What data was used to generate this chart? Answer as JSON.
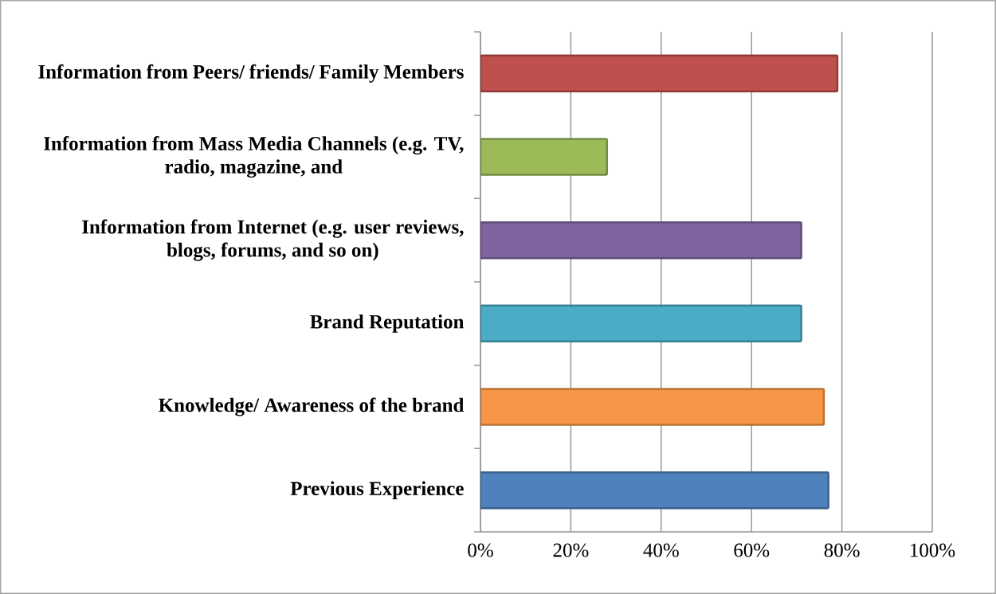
{
  "chart_data": {
    "type": "bar",
    "orientation": "horizontal",
    "categories": [
      "Information from Peers/ friends/ Family Members",
      "Information from Mass Media Channels (e.g. TV, radio, magazine, and",
      "Information from Internet (e.g. user reviews, blogs, forums, and so on)",
      "Brand Reputation",
      "Knowledge/ Awareness of the brand",
      "Previous Experience"
    ],
    "values": [
      79,
      28,
      71,
      71,
      76,
      77
    ],
    "colors": [
      "#c0504d",
      "#9bbb59",
      "#8064a2",
      "#4bacc6",
      "#f79646",
      "#4f81bd"
    ],
    "xlim": [
      0,
      100
    ],
    "xticks": [
      {
        "value": 0,
        "label": "0%"
      },
      {
        "value": 20,
        "label": "20%"
      },
      {
        "value": 40,
        "label": "40%"
      },
      {
        "value": 60,
        "label": "60%"
      },
      {
        "value": 80,
        "label": "80%"
      },
      {
        "value": 100,
        "label": "100%"
      }
    ],
    "grid": "x"
  }
}
